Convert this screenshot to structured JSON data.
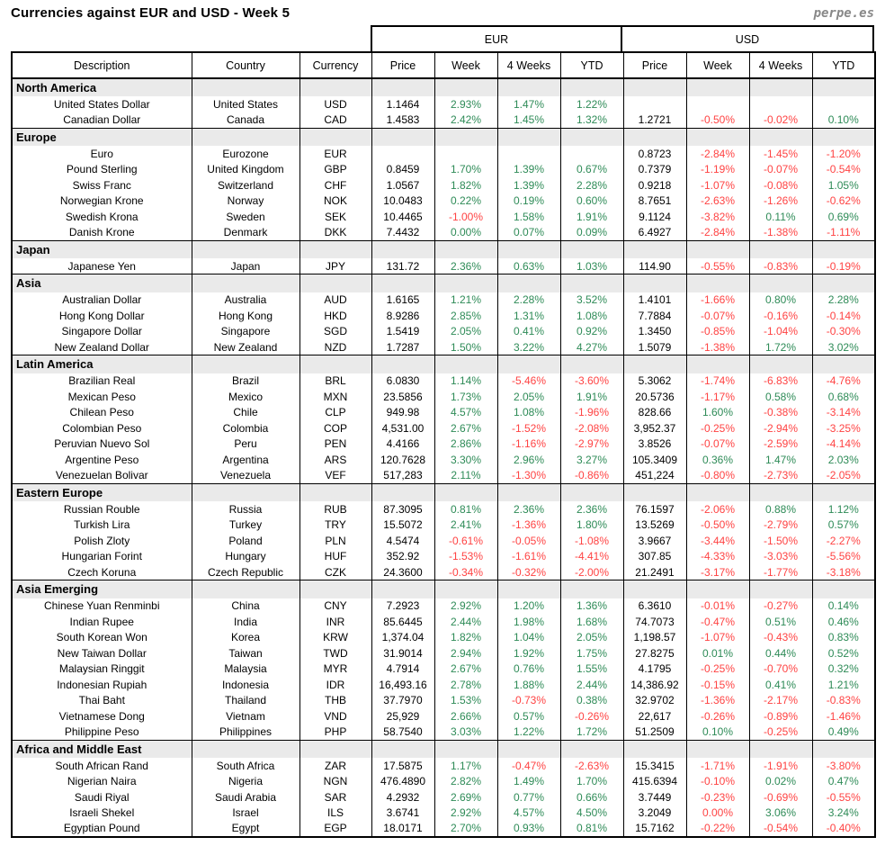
{
  "header": {
    "logo_text": "perpe.es"
  },
  "chart_data": {
    "type": "table",
    "title": "Currencies against EUR and USD - Week 5",
    "column_groups": [
      "EUR",
      "USD"
    ],
    "columns": [
      "Description",
      "Country",
      "Currency",
      "Price",
      "Week",
      "4 Weeks",
      "YTD",
      "Price",
      "Week",
      "4 Weeks",
      "YTD"
    ],
    "colors": {
      "positive": "#2E8B57",
      "negative": "#FF4343",
      "section_bg": "#EAEAEA"
    },
    "sections": [
      {
        "name": "North America",
        "rows": [
          [
            "United States Dollar",
            "United States",
            "USD",
            "1.1464",
            "2.93%",
            "1.47%",
            "1.22%",
            "",
            "",
            "",
            ""
          ],
          [
            "Canadian Dollar",
            "Canada",
            "CAD",
            "1.4583",
            "2.42%",
            "1.45%",
            "1.32%",
            "1.2721",
            "-0.50%",
            "-0.02%",
            "0.10%"
          ]
        ]
      },
      {
        "name": "Europe",
        "rows": [
          [
            "Euro",
            "Eurozone",
            "EUR",
            "",
            "",
            "",
            "",
            "0.8723",
            "-2.84%",
            "-1.45%",
            "-1.20%"
          ],
          [
            "Pound Sterling",
            "United Kingdom",
            "GBP",
            "0.8459",
            "1.70%",
            "1.39%",
            "0.67%",
            "0.7379",
            "-1.19%",
            "-0.07%",
            "-0.54%"
          ],
          [
            "Swiss Franc",
            "Switzerland",
            "CHF",
            "1.0567",
            "1.82%",
            "1.39%",
            "2.28%",
            "0.9218",
            "-1.07%",
            "-0.08%",
            "1.05%"
          ],
          [
            "Norwegian Krone",
            "Norway",
            "NOK",
            "10.0483",
            "0.22%",
            "0.19%",
            "0.60%",
            "8.7651",
            "-2.63%",
            "-1.26%",
            "-0.62%"
          ],
          [
            "Swedish Krona",
            "Sweden",
            "SEK",
            "10.4465",
            "-1.00%",
            "1.58%",
            "1.91%",
            "9.1124",
            "-3.82%",
            "0.11%",
            "0.69%"
          ],
          [
            "Danish Krone",
            "Denmark",
            "DKK",
            "7.4432",
            "0.00%",
            "0.07%",
            "0.09%",
            "6.4927",
            "-2.84%",
            "-1.38%",
            "-1.11%"
          ]
        ]
      },
      {
        "name": "Japan",
        "rows": [
          [
            "Japanese Yen",
            "Japan",
            "JPY",
            "131.72",
            "2.36%",
            "0.63%",
            "1.03%",
            "114.90",
            "-0.55%",
            "-0.83%",
            "-0.19%"
          ]
        ]
      },
      {
        "name": "Asia",
        "rows": [
          [
            "Australian Dollar",
            "Australia",
            "AUD",
            "1.6165",
            "1.21%",
            "2.28%",
            "3.52%",
            "1.4101",
            "-1.66%",
            "0.80%",
            "2.28%"
          ],
          [
            "Hong Kong Dollar",
            "Hong Kong",
            "HKD",
            "8.9286",
            "2.85%",
            "1.31%",
            "1.08%",
            "7.7884",
            "-0.07%",
            "-0.16%",
            "-0.14%"
          ],
          [
            "Singapore Dollar",
            "Singapore",
            "SGD",
            "1.5419",
            "2.05%",
            "0.41%",
            "0.92%",
            "1.3450",
            "-0.85%",
            "-1.04%",
            "-0.30%"
          ],
          [
            "New Zealand Dollar",
            "New Zealand",
            "NZD",
            "1.7287",
            "1.50%",
            "3.22%",
            "4.27%",
            "1.5079",
            "-1.38%",
            "1.72%",
            "3.02%"
          ]
        ]
      },
      {
        "name": "Latin America",
        "rows": [
          [
            "Brazilian Real",
            "Brazil",
            "BRL",
            "6.0830",
            "1.14%",
            "-5.46%",
            "-3.60%",
            "5.3062",
            "-1.74%",
            "-6.83%",
            "-4.76%"
          ],
          [
            "Mexican Peso",
            "Mexico",
            "MXN",
            "23.5856",
            "1.73%",
            "2.05%",
            "1.91%",
            "20.5736",
            "-1.17%",
            "0.58%",
            "0.68%"
          ],
          [
            "Chilean Peso",
            "Chile",
            "CLP",
            "949.98",
            "4.57%",
            "1.08%",
            "-1.96%",
            "828.66",
            "1.60%",
            "-0.38%",
            "-3.14%"
          ],
          [
            "Colombian Peso",
            "Colombia",
            "COP",
            "4,531.00",
            "2.67%",
            "-1.52%",
            "-2.08%",
            "3,952.37",
            "-0.25%",
            "-2.94%",
            "-3.25%"
          ],
          [
            "Peruvian Nuevo Sol",
            "Peru",
            "PEN",
            "4.4166",
            "2.86%",
            "-1.16%",
            "-2.97%",
            "3.8526",
            "-0.07%",
            "-2.59%",
            "-4.14%"
          ],
          [
            "Argentine Peso",
            "Argentina",
            "ARS",
            "120.7628",
            "3.30%",
            "2.96%",
            "3.27%",
            "105.3409",
            "0.36%",
            "1.47%",
            "2.03%"
          ],
          [
            "Venezuelan Bolivar",
            "Venezuela",
            "VEF",
            "517,283",
            "2.11%",
            "-1.30%",
            "-0.86%",
            "451,224",
            "-0.80%",
            "-2.73%",
            "-2.05%"
          ]
        ]
      },
      {
        "name": "Eastern Europe",
        "rows": [
          [
            "Russian Rouble",
            "Russia",
            "RUB",
            "87.3095",
            "0.81%",
            "2.36%",
            "2.36%",
            "76.1597",
            "-2.06%",
            "0.88%",
            "1.12%"
          ],
          [
            "Turkish Lira",
            "Turkey",
            "TRY",
            "15.5072",
            "2.41%",
            "-1.36%",
            "1.80%",
            "13.5269",
            "-0.50%",
            "-2.79%",
            "0.57%"
          ],
          [
            "Polish Zloty",
            "Poland",
            "PLN",
            "4.5474",
            "-0.61%",
            "-0.05%",
            "-1.08%",
            "3.9667",
            "-3.44%",
            "-1.50%",
            "-2.27%"
          ],
          [
            "Hungarian Forint",
            "Hungary",
            "HUF",
            "352.92",
            "-1.53%",
            "-1.61%",
            "-4.41%",
            "307.85",
            "-4.33%",
            "-3.03%",
            "-5.56%"
          ],
          [
            "Czech Koruna",
            "Czech Republic",
            "CZK",
            "24.3600",
            "-0.34%",
            "-0.32%",
            "-2.00%",
            "21.2491",
            "-3.17%",
            "-1.77%",
            "-3.18%"
          ]
        ]
      },
      {
        "name": "Asia Emerging",
        "rows": [
          [
            "Chinese Yuan Renminbi",
            "China",
            "CNY",
            "7.2923",
            "2.92%",
            "1.20%",
            "1.36%",
            "6.3610",
            "-0.01%",
            "-0.27%",
            "0.14%"
          ],
          [
            "Indian Rupee",
            "India",
            "INR",
            "85.6445",
            "2.44%",
            "1.98%",
            "1.68%",
            "74.7073",
            "-0.47%",
            "0.51%",
            "0.46%"
          ],
          [
            "South Korean Won",
            "Korea",
            "KRW",
            "1,374.04",
            "1.82%",
            "1.04%",
            "2.05%",
            "1,198.57",
            "-1.07%",
            "-0.43%",
            "0.83%"
          ],
          [
            "New Taiwan Dollar",
            "Taiwan",
            "TWD",
            "31.9014",
            "2.94%",
            "1.92%",
            "1.75%",
            "27.8275",
            "0.01%",
            "0.44%",
            "0.52%"
          ],
          [
            "Malaysian Ringgit",
            "Malaysia",
            "MYR",
            "4.7914",
            "2.67%",
            "0.76%",
            "1.55%",
            "4.1795",
            "-0.25%",
            "-0.70%",
            "0.32%"
          ],
          [
            "Indonesian Rupiah",
            "Indonesia",
            "IDR",
            "16,493.16",
            "2.78%",
            "1.88%",
            "2.44%",
            "14,386.92",
            "-0.15%",
            "0.41%",
            "1.21%"
          ],
          [
            "Thai Baht",
            "Thailand",
            "THB",
            "37.7970",
            "1.53%",
            "-0.73%",
            "0.38%",
            "32.9702",
            "-1.36%",
            "-2.17%",
            "-0.83%"
          ],
          [
            "Vietnamese Dong",
            "Vietnam",
            "VND",
            "25,929",
            "2.66%",
            "0.57%",
            "-0.26%",
            "22,617",
            "-0.26%",
            "-0.89%",
            "-1.46%"
          ],
          [
            "Philippine Peso",
            "Philippines",
            "PHP",
            "58.7540",
            "3.03%",
            "1.22%",
            "1.72%",
            "51.2509",
            "0.10%",
            "-0.25%",
            "0.49%"
          ]
        ]
      },
      {
        "name": "Africa and Middle East",
        "rows": [
          [
            "South African Rand",
            "South Africa",
            "ZAR",
            "17.5875",
            "1.17%",
            "-0.47%",
            "-2.63%",
            "15.3415",
            "-1.71%",
            "-1.91%",
            "-3.80%"
          ],
          [
            "Nigerian Naira",
            "Nigeria",
            "NGN",
            "476.4890",
            "2.82%",
            "1.49%",
            "1.70%",
            "415.6394",
            "-0.10%",
            "0.02%",
            "0.47%"
          ],
          [
            "Saudi Riyal",
            "Saudi Arabia",
            "SAR",
            "4.2932",
            "2.69%",
            "0.77%",
            "0.66%",
            "3.7449",
            "-0.23%",
            "-0.69%",
            "-0.55%"
          ],
          [
            "Israeli Shekel",
            "Israel",
            "ILS",
            "3.6741",
            "2.92%",
            "4.57%",
            "4.50%",
            "3.2049",
            "0.00%",
            "3.06%",
            "3.24%"
          ],
          [
            "Egyptian Pound",
            "Egypt",
            "EGP",
            "18.0171",
            "2.70%",
            "0.93%",
            "0.81%",
            "15.7162",
            "-0.22%",
            "-0.54%",
            "-0.40%"
          ]
        ]
      }
    ],
    "color_overrides": [
      {
        "section": 7,
        "row": 3,
        "col": 8,
        "color": "negative"
      }
    ]
  }
}
